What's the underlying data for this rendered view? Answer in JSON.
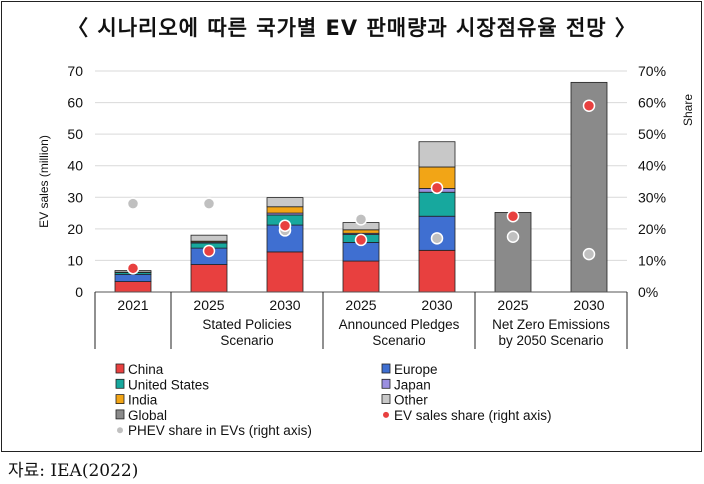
{
  "title": "〈 시나리오에 따른 국가별 EV 판매량과 시장점유율 전망 〉",
  "source": "자료: IEA(2022)",
  "chart_data": {
    "type": "bar",
    "stacked": true,
    "ylabel": "EV sales (million)",
    "y2label": "Share",
    "ylim": [
      0,
      70
    ],
    "yticks": [
      "0",
      "10",
      "20",
      "30",
      "40",
      "50",
      "60",
      "70"
    ],
    "y2lim": [
      0,
      70
    ],
    "y2ticks": [
      "0%",
      "10%",
      "20%",
      "30%",
      "40%",
      "50%",
      "60%",
      "70%"
    ],
    "categories": [
      "2021",
      "2025",
      "2030",
      "2025",
      "2030",
      "2025",
      "2030"
    ],
    "groups": [
      {
        "label": [
          "",
          ""
        ],
        "members": [
          0
        ]
      },
      {
        "label": [
          "Stated Policies",
          "Scenario"
        ],
        "members": [
          1,
          2
        ]
      },
      {
        "label": [
          "Announced Pledges",
          "Scenario"
        ],
        "members": [
          3,
          4
        ]
      },
      {
        "label": [
          "Net Zero Emissions",
          "by 2050 Scenario"
        ],
        "members": [
          5,
          6
        ]
      }
    ],
    "series": [
      {
        "name": "China",
        "color": "#e8403f",
        "values": [
          3.3,
          8.7,
          12.7,
          9.8,
          13.2,
          0,
          0
        ]
      },
      {
        "name": "Europe",
        "color": "#3f6fd1",
        "values": [
          2.3,
          5.2,
          8.5,
          5.9,
          10.8,
          0,
          0
        ]
      },
      {
        "name": "United States",
        "color": "#17a89e",
        "values": [
          0.6,
          1.6,
          3.2,
          2.5,
          7.6,
          0,
          0
        ]
      },
      {
        "name": "Japan",
        "color": "#9b8fe0",
        "values": [
          0.05,
          0.3,
          0.6,
          0.4,
          1.2,
          0,
          0
        ]
      },
      {
        "name": "India",
        "color": "#f2a516",
        "values": [
          0.05,
          0.3,
          2.0,
          1.1,
          6.8,
          0,
          0
        ]
      },
      {
        "name": "Other",
        "color": "#c8c8c8",
        "values": [
          0.5,
          1.9,
          2.9,
          2.3,
          8.0,
          0,
          0
        ]
      },
      {
        "name": "Global",
        "color": "#8a8a8a",
        "values": [
          0,
          0,
          0,
          0,
          0,
          25.2,
          66.4
        ]
      }
    ],
    "ev_sales_share": {
      "name": "EV sales share (right axis)",
      "color": "#e8403f",
      "values": [
        7.5,
        13,
        21,
        16.5,
        33,
        24,
        59
      ]
    },
    "phev_share": {
      "name": "PHEV share in EVs (right axis)",
      "color": "#c0c0c0",
      "values": [
        28,
        28,
        19.5,
        23,
        17,
        17.5,
        12
      ]
    }
  }
}
